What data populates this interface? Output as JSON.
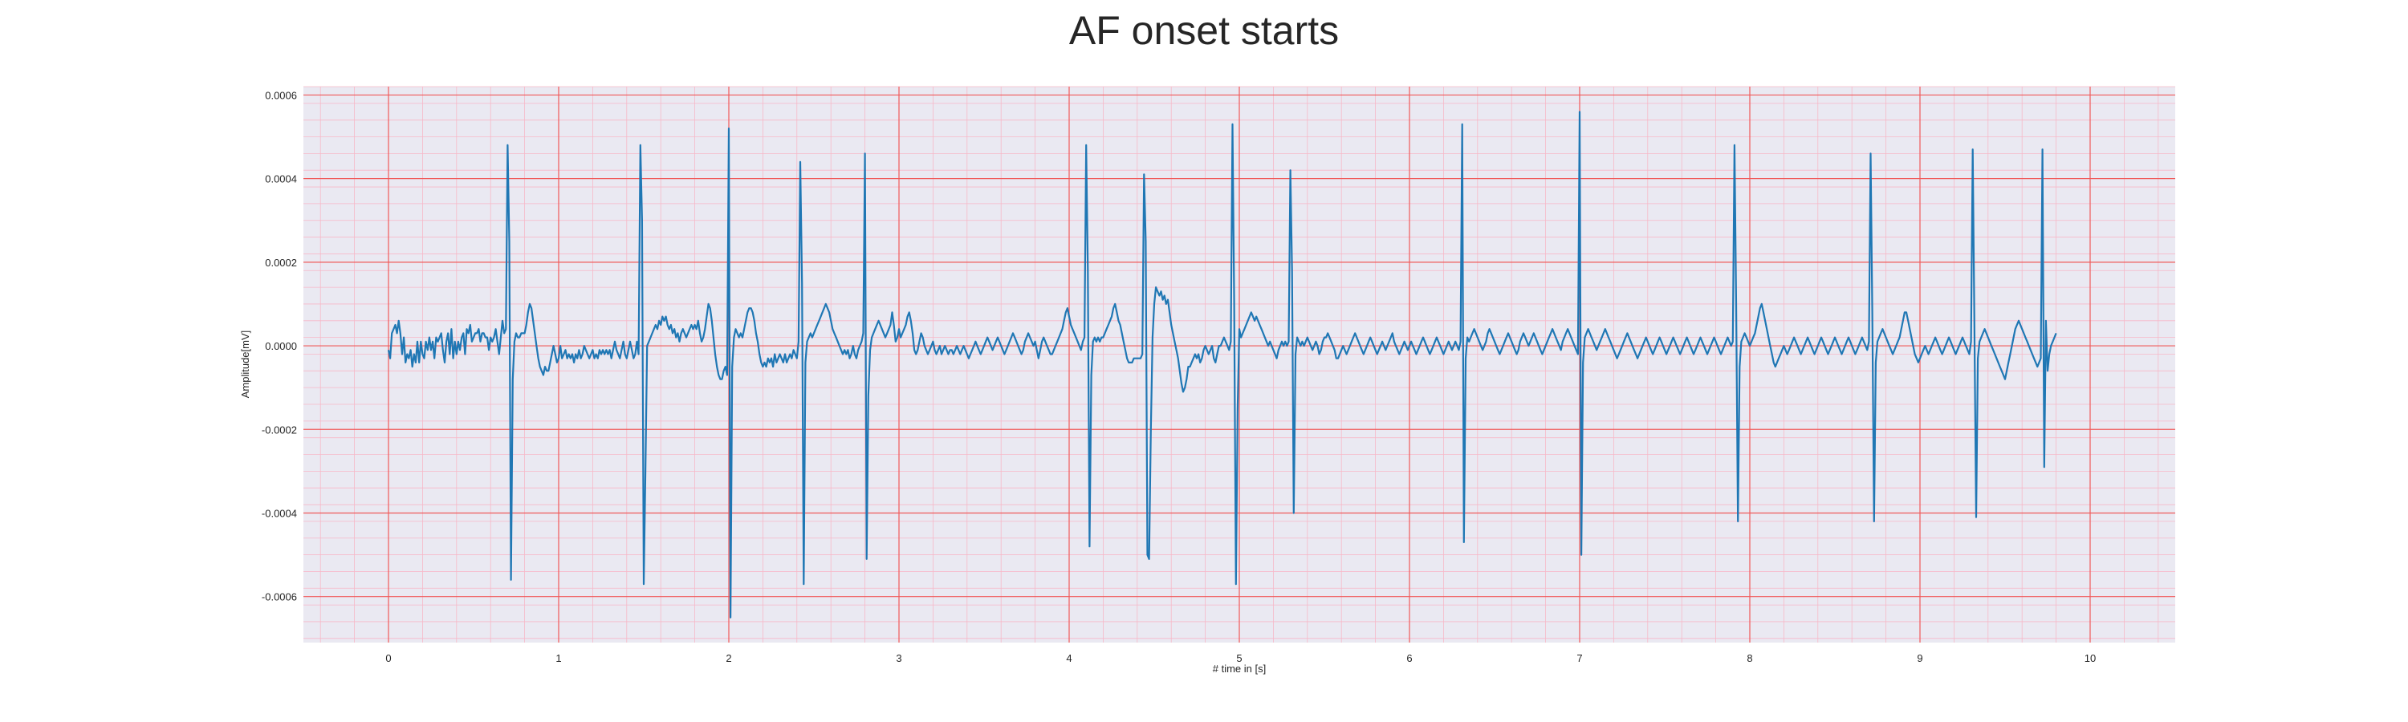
{
  "chart_data": {
    "type": "line",
    "title": "AF onset starts",
    "xlabel": "# time in [s]",
    "ylabel": "Amplitude[mV]",
    "xlim": [
      -0.5,
      10.5
    ],
    "ylim": [
      -0.00071,
      0.00062
    ],
    "x_ticks": [
      0,
      1,
      2,
      3,
      4,
      5,
      6,
      7,
      8,
      9,
      10
    ],
    "x_tick_labels": [
      "0",
      "1",
      "2",
      "3",
      "4",
      "5",
      "6",
      "7",
      "8",
      "9",
      "10"
    ],
    "y_ticks": [
      -0.0006,
      -0.0004,
      -0.0002,
      0.0,
      0.0002,
      0.0004,
      0.0006
    ],
    "y_tick_labels": [
      "-0.0006",
      "-0.0004",
      "-0.0002",
      "0.0000",
      "0.0002",
      "0.0004",
      "0.0006"
    ],
    "grid": true,
    "minor_grid": true,
    "colors": {
      "line": "#1f77b4",
      "plot_background": "#eae9f2",
      "major_grid": "#f05a5a",
      "minor_grid": "#f7b8c8"
    },
    "sampling_interval_s": 0.01,
    "x_start": 0,
    "series": [
      {
        "name": "",
        "values": [
          -1e-05,
          -3e-05,
          3e-05,
          4e-05,
          5e-05,
          3e-05,
          6e-05,
          3e-05,
          -2e-05,
          2e-05,
          -4e-05,
          -2e-05,
          -3e-05,
          -1e-05,
          -5e-05,
          -2e-05,
          -4e-05,
          1e-05,
          -4e-05,
          1e-05,
          -2e-05,
          -3e-05,
          1e-05,
          -1e-05,
          2e-05,
          -1e-05,
          1e-05,
          -3e-05,
          2e-05,
          1e-05,
          2e-05,
          3e-05,
          -1e-05,
          -4e-05,
          1e-05,
          3e-05,
          -2e-05,
          4e-05,
          -3e-05,
          1e-05,
          -2e-05,
          1e-05,
          -1e-05,
          2e-05,
          3e-05,
          -2e-05,
          4e-05,
          3e-05,
          5e-05,
          1e-05,
          2e-05,
          3e-05,
          3e-05,
          4e-05,
          1e-05,
          3e-05,
          3e-05,
          2e-05,
          2e-05,
          -1e-05,
          2e-05,
          1e-05,
          2e-05,
          4e-05,
          1e-05,
          -2e-05,
          2e-05,
          6e-05,
          3e-05,
          4e-05,
          0.00048,
          0.00025,
          -0.00056,
          -8e-05,
          1e-05,
          3e-05,
          2e-05,
          2e-05,
          3e-05,
          3e-05,
          3e-05,
          5e-05,
          8e-05,
          0.0001,
          9e-05,
          6e-05,
          3e-05,
          0.0,
          -3e-05,
          -5e-05,
          -6e-05,
          -7e-05,
          -5e-05,
          -6e-05,
          -6e-05,
          -4e-05,
          -2e-05,
          0.0,
          -2e-05,
          -4e-05,
          -3e-05,
          0.0,
          -3e-05,
          -2e-05,
          -1e-05,
          -3e-05,
          -2e-05,
          -3e-05,
          -2e-05,
          -4e-05,
          -2e-05,
          -3e-05,
          -1e-05,
          -3e-05,
          -2e-05,
          0.0,
          -1e-05,
          -2e-05,
          -3e-05,
          -2e-05,
          -1e-05,
          -3e-05,
          -2e-05,
          -3e-05,
          -1e-05,
          -2e-05,
          -1e-05,
          -2e-05,
          -1e-05,
          -2e-05,
          -1e-05,
          -3e-05,
          -1e-05,
          1e-05,
          -1e-05,
          -2e-05,
          -3e-05,
          -1e-05,
          1e-05,
          -2e-05,
          -3e-05,
          -1e-05,
          1e-05,
          -1e-05,
          -3e-05,
          -2e-05,
          1e-05,
          -2e-05,
          0.00048,
          0.0003,
          -0.00057,
          -0.0003,
          0.0,
          1e-05,
          2e-05,
          3e-05,
          4e-05,
          5e-05,
          4e-05,
          6e-05,
          5e-05,
          7e-05,
          6e-05,
          7e-05,
          5e-05,
          4e-05,
          5e-05,
          3e-05,
          4e-05,
          2e-05,
          3e-05,
          1e-05,
          3e-05,
          4e-05,
          3e-05,
          2e-05,
          3e-05,
          4e-05,
          5e-05,
          4e-05,
          5e-05,
          4e-05,
          6e-05,
          3e-05,
          1e-05,
          2e-05,
          4e-05,
          7e-05,
          0.0001,
          9e-05,
          6e-05,
          2e-05,
          -2e-05,
          -5e-05,
          -7e-05,
          -8e-05,
          -8e-05,
          -6e-05,
          -5e-05,
          -7e-05,
          0.00052,
          -0.00065,
          -5e-05,
          2e-05,
          4e-05,
          3e-05,
          2e-05,
          3e-05,
          2e-05,
          4e-05,
          6e-05,
          8e-05,
          9e-05,
          9e-05,
          8e-05,
          6e-05,
          3e-05,
          1e-05,
          -2e-05,
          -4e-05,
          -5e-05,
          -4e-05,
          -5e-05,
          -3e-05,
          -4e-05,
          -3e-05,
          -5e-05,
          -2e-05,
          -4e-05,
          -3e-05,
          -2e-05,
          -3e-05,
          -4e-05,
          -2e-05,
          -4e-05,
          -3e-05,
          -2e-05,
          -3e-05,
          -1e-05,
          -2e-05,
          -3e-05,
          1e-05,
          0.00044,
          0.00015,
          -0.00057,
          -4e-05,
          1e-05,
          2e-05,
          3e-05,
          2e-05,
          3e-05,
          4e-05,
          5e-05,
          6e-05,
          7e-05,
          8e-05,
          9e-05,
          0.0001,
          9e-05,
          8e-05,
          6e-05,
          4e-05,
          3e-05,
          2e-05,
          1e-05,
          0.0,
          -1e-05,
          -2e-05,
          -1e-05,
          -2e-05,
          -1e-05,
          -3e-05,
          -2e-05,
          0.0,
          -2e-05,
          -3e-05,
          -1e-05,
          0.0,
          1e-05,
          3e-05,
          0.00046,
          -0.00051,
          -0.00012,
          -1e-05,
          2e-05,
          3e-05,
          4e-05,
          5e-05,
          6e-05,
          5e-05,
          4e-05,
          3e-05,
          2e-05,
          3e-05,
          4e-05,
          5e-05,
          8e-05,
          5e-05,
          1e-05,
          2e-05,
          4e-05,
          2e-05,
          3e-05,
          4e-05,
          5e-05,
          7e-05,
          8e-05,
          6e-05,
          3e-05,
          -1e-05,
          -2e-05,
          -1e-05,
          1e-05,
          3e-05,
          2e-05,
          0.0,
          -1e-05,
          -2e-05,
          -1e-05,
          0.0,
          1e-05,
          -1e-05,
          -2e-05,
          -1e-05,
          0.0,
          -2e-05,
          -1e-05,
          0.0,
          -1e-05,
          -2e-05,
          -1e-05,
          -1e-05,
          -2e-05,
          -1e-05,
          0.0,
          -1e-05,
          -2e-05,
          -1e-05,
          0.0,
          -1e-05,
          -2e-05,
          -3e-05,
          -2e-05,
          -1e-05,
          0.0,
          1e-05,
          0.0,
          -1e-05,
          -2e-05,
          -1e-05,
          0.0,
          1e-05,
          2e-05,
          1e-05,
          0.0,
          -1e-05,
          0.0,
          1e-05,
          2e-05,
          1e-05,
          0.0,
          -1e-05,
          -2e-05,
          -1e-05,
          0.0,
          1e-05,
          2e-05,
          3e-05,
          2e-05,
          1e-05,
          0.0,
          -1e-05,
          -2e-05,
          -1e-05,
          1e-05,
          2e-05,
          3e-05,
          2e-05,
          1e-05,
          0.0,
          1e-05,
          -1e-05,
          -3e-05,
          -1e-05,
          1e-05,
          2e-05,
          1e-05,
          0.0,
          -1e-05,
          -2e-05,
          -2e-05,
          -1e-05,
          0.0,
          1e-05,
          2e-05,
          3e-05,
          4e-05,
          6e-05,
          8e-05,
          9e-05,
          7e-05,
          5e-05,
          4e-05,
          3e-05,
          2e-05,
          1e-05,
          0.0,
          -1e-05,
          1e-05,
          2e-05,
          0.00048,
          0.00018,
          -0.00048,
          -7e-05,
          1e-05,
          2e-05,
          1e-05,
          2e-05,
          1e-05,
          2e-05,
          2e-05,
          3e-05,
          4e-05,
          5e-05,
          6e-05,
          7e-05,
          9e-05,
          0.0001,
          8e-05,
          6e-05,
          5e-05,
          3e-05,
          1e-05,
          -1e-05,
          -3e-05,
          -4e-05,
          -4e-05,
          -4e-05,
          -3e-05,
          -3e-05,
          -3e-05,
          -3e-05,
          -3e-05,
          -2e-05,
          0.00041,
          0.00025,
          -0.0005,
          -0.00051,
          -0.0002,
          2e-05,
          0.0001,
          0.00014,
          0.00013,
          0.00012,
          0.00013,
          0.00011,
          0.00012,
          0.0001,
          0.00011,
          8e-05,
          5e-05,
          3e-05,
          1e-05,
          -1e-05,
          -3e-05,
          -6e-05,
          -9e-05,
          -0.00011,
          -0.0001,
          -8e-05,
          -5e-05,
          -5e-05,
          -4e-05,
          -3e-05,
          -2e-05,
          -3e-05,
          -2e-05,
          -4e-05,
          -3e-05,
          -1e-05,
          0.0,
          -1e-05,
          -2e-05,
          -1e-05,
          0.0,
          -3e-05,
          -4e-05,
          -2e-05,
          0.0,
          0.0,
          1e-05,
          2e-05,
          1e-05,
          0.0,
          -1e-05,
          1e-05,
          0.00053,
          0.0001,
          -0.00057,
          -0.00015,
          4e-05,
          2e-05,
          3e-05,
          4e-05,
          5e-05,
          6e-05,
          7e-05,
          8e-05,
          7e-05,
          6e-05,
          7e-05,
          6e-05,
          5e-05,
          4e-05,
          3e-05,
          2e-05,
          1e-05,
          0.0,
          1e-05,
          0.0,
          -1e-05,
          -2e-05,
          -3e-05,
          -1e-05,
          0.0,
          1e-05,
          0.0,
          1e-05,
          0.0,
          1e-05,
          0.00042,
          0.00018,
          -0.0004,
          -2e-05,
          2e-05,
          1e-05,
          0.0,
          1e-05,
          0.0,
          1e-05,
          2e-05,
          1e-05,
          0.0,
          -1e-05,
          0.0,
          1e-05,
          0.0,
          -2e-05,
          -1e-05,
          1e-05,
          2e-05,
          2e-05,
          3e-05,
          2e-05,
          1e-05,
          0.0,
          -1e-05,
          -3e-05,
          -3e-05,
          -2e-05,
          -1e-05,
          0.0,
          -1e-05,
          -2e-05,
          -1e-05,
          0.0,
          1e-05,
          2e-05,
          3e-05,
          2e-05,
          1e-05,
          0.0,
          -1e-05,
          -2e-05,
          -1e-05,
          0.0,
          1e-05,
          2e-05,
          1e-05,
          0.0,
          -1e-05,
          -2e-05,
          -1e-05,
          0.0,
          1e-05,
          0.0,
          -1e-05,
          0.0,
          1e-05,
          2e-05,
          3e-05,
          1e-05,
          0.0,
          -1e-05,
          -2e-05,
          -1e-05,
          0.0,
          1e-05,
          0.0,
          -1e-05,
          0.0,
          1e-05,
          0.0,
          -1e-05,
          -2e-05,
          -1e-05,
          0.0,
          1e-05,
          2e-05,
          1e-05,
          0.0,
          -1e-05,
          -2e-05,
          -1e-05,
          0.0,
          1e-05,
          2e-05,
          1e-05,
          0.0,
          -1e-05,
          -2e-05,
          -1e-05,
          0.0,
          1e-05,
          0.0,
          -1e-05,
          0.0,
          1e-05,
          0.0,
          -1e-05,
          1e-05,
          0.00053,
          -0.00047,
          -3e-05,
          2e-05,
          1e-05,
          2e-05,
          3e-05,
          4e-05,
          3e-05,
          2e-05,
          1e-05,
          0.0,
          -1e-05,
          0.0,
          1e-05,
          3e-05,
          4e-05,
          3e-05,
          2e-05,
          1e-05,
          0.0,
          -1e-05,
          -2e-05,
          -1e-05,
          0.0,
          1e-05,
          2e-05,
          3e-05,
          2e-05,
          1e-05,
          0.0,
          -1e-05,
          -2e-05,
          -1e-05,
          1e-05,
          2e-05,
          3e-05,
          2e-05,
          1e-05,
          0.0,
          1e-05,
          2e-05,
          3e-05,
          2e-05,
          1e-05,
          0.0,
          -1e-05,
          -2e-05,
          -1e-05,
          0.0,
          1e-05,
          2e-05,
          3e-05,
          4e-05,
          3e-05,
          2e-05,
          1e-05,
          0.0,
          -1e-05,
          1e-05,
          2e-05,
          3e-05,
          4e-05,
          3e-05,
          2e-05,
          1e-05,
          0.0,
          -1e-05,
          -2e-05,
          0.00056,
          -0.0005,
          -4e-05,
          2e-05,
          3e-05,
          4e-05,
          3e-05,
          2e-05,
          1e-05,
          0.0,
          -1e-05,
          0.0,
          1e-05,
          2e-05,
          3e-05,
          4e-05,
          3e-05,
          2e-05,
          1e-05,
          0.0,
          -1e-05,
          -2e-05,
          -3e-05,
          -2e-05,
          -1e-05,
          0.0,
          1e-05,
          2e-05,
          3e-05,
          2e-05,
          1e-05,
          0.0,
          -1e-05,
          -2e-05,
          -3e-05,
          -2e-05,
          -1e-05,
          0.0,
          1e-05,
          2e-05,
          1e-05,
          0.0,
          -1e-05,
          -2e-05,
          -1e-05,
          0.0,
          1e-05,
          2e-05,
          1e-05,
          0.0,
          -1e-05,
          -2e-05,
          -1e-05,
          0.0,
          1e-05,
          2e-05,
          1e-05,
          0.0,
          -1e-05,
          -2e-05,
          -1e-05,
          0.0,
          1e-05,
          2e-05,
          1e-05,
          0.0,
          -1e-05,
          -2e-05,
          -1e-05,
          0.0,
          1e-05,
          2e-05,
          1e-05,
          0.0,
          -1e-05,
          -2e-05,
          -1e-05,
          0.0,
          1e-05,
          2e-05,
          1e-05,
          0.0,
          -1e-05,
          -2e-05,
          -1e-05,
          0.0,
          1e-05,
          2e-05,
          1e-05,
          0.0,
          1e-05,
          0.00048,
          0.0001,
          -0.00042,
          -5e-05,
          1e-05,
          2e-05,
          3e-05,
          2e-05,
          1e-05,
          0.0,
          1e-05,
          2e-05,
          3e-05,
          5e-05,
          7e-05,
          9e-05,
          0.0001,
          8e-05,
          6e-05,
          4e-05,
          2e-05,
          0.0,
          -2e-05,
          -4e-05,
          -5e-05,
          -4e-05,
          -3e-05,
          -2e-05,
          -1e-05,
          0.0,
          -1e-05,
          -2e-05,
          -1e-05,
          0.0,
          1e-05,
          2e-05,
          1e-05,
          0.0,
          -1e-05,
          -2e-05,
          -1e-05,
          0.0,
          1e-05,
          2e-05,
          1e-05,
          0.0,
          -1e-05,
          -2e-05,
          -1e-05,
          0.0,
          1e-05,
          2e-05,
          1e-05,
          0.0,
          -1e-05,
          -2e-05,
          -1e-05,
          0.0,
          1e-05,
          2e-05,
          1e-05,
          0.0,
          -1e-05,
          -2e-05,
          -1e-05,
          0.0,
          1e-05,
          2e-05,
          1e-05,
          0.0,
          -1e-05,
          -2e-05,
          -1e-05,
          0.0,
          1e-05,
          2e-05,
          1e-05,
          0.0,
          -1e-05,
          1e-05,
          0.00046,
          8e-05,
          -0.00042,
          -4e-05,
          1e-05,
          2e-05,
          3e-05,
          4e-05,
          3e-05,
          2e-05,
          1e-05,
          0.0,
          -1e-05,
          -2e-05,
          -1e-05,
          0.0,
          1e-05,
          2e-05,
          4e-05,
          6e-05,
          8e-05,
          8e-05,
          6e-05,
          4e-05,
          2e-05,
          0.0,
          -2e-05,
          -3e-05,
          -4e-05,
          -3e-05,
          -2e-05,
          -1e-05,
          0.0,
          -1e-05,
          -2e-05,
          -1e-05,
          0.0,
          1e-05,
          2e-05,
          1e-05,
          0.0,
          -1e-05,
          -2e-05,
          -1e-05,
          0.0,
          1e-05,
          2e-05,
          1e-05,
          0.0,
          -1e-05,
          -2e-05,
          -1e-05,
          0.0,
          1e-05,
          2e-05,
          1e-05,
          0.0,
          -1e-05,
          -2e-05,
          1e-05,
          0.00047,
          5e-05,
          -0.00041,
          -3e-05,
          1e-05,
          2e-05,
          3e-05,
          4e-05,
          3e-05,
          2e-05,
          1e-05,
          0.0,
          -1e-05,
          -2e-05,
          -3e-05,
          -4e-05,
          -5e-05,
          -6e-05,
          -7e-05,
          -8e-05,
          -6e-05,
          -4e-05,
          -2e-05,
          0.0,
          2e-05,
          4e-05,
          5e-05,
          6e-05,
          5e-05,
          4e-05,
          3e-05,
          2e-05,
          1e-05,
          0.0,
          -1e-05,
          -2e-05,
          -3e-05,
          -4e-05,
          -5e-05,
          -4e-05,
          -3e-05,
          0.00047,
          -0.00029,
          6e-05,
          -6e-05,
          -2e-05,
          0.0,
          1e-05,
          2e-05,
          3e-05
        ]
      }
    ]
  }
}
